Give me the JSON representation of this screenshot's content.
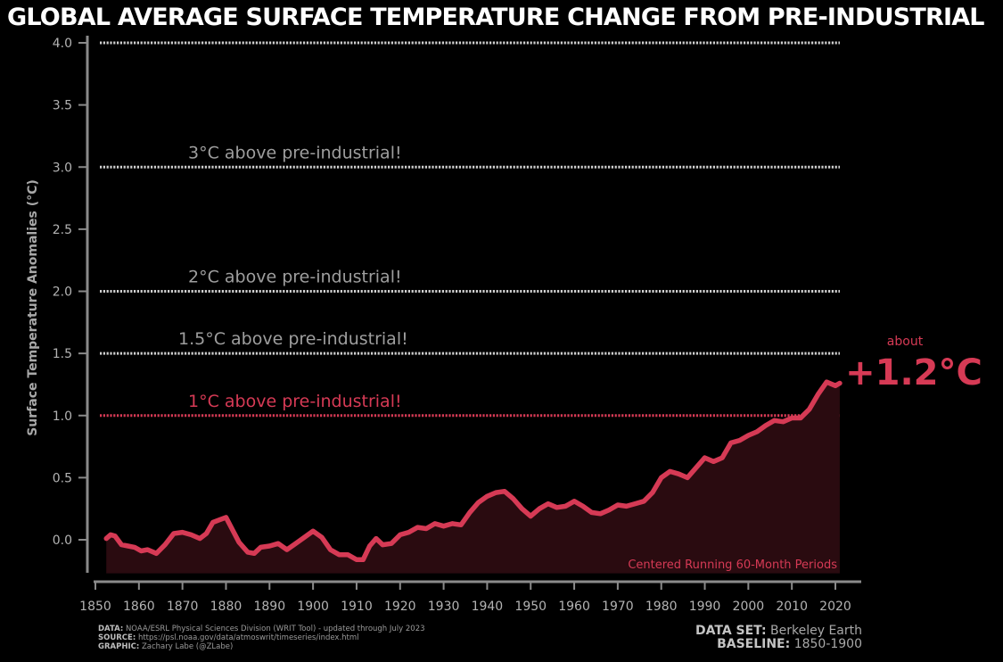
{
  "title": "GLOBAL AVERAGE SURFACE TEMPERATURE CHANGE FROM PRE-INDUSTRIAL",
  "chart_data": {
    "type": "area",
    "xlabel": "",
    "ylabel": "Surface Temperature Anomalies (°C)",
    "xlim": [
      1850,
      2025
    ],
    "ylim": [
      -0.25,
      4.0
    ],
    "x_ticks": [
      1850,
      1860,
      1870,
      1880,
      1890,
      1900,
      1910,
      1920,
      1930,
      1940,
      1950,
      1960,
      1970,
      1980,
      1990,
      2000,
      2010,
      2020
    ],
    "y_ticks": [
      0.0,
      0.5,
      1.0,
      1.5,
      2.0,
      2.5,
      3.0,
      3.5,
      4.0
    ],
    "grid": false,
    "series": [
      {
        "x": [
          1852.5,
          1853.5,
          1854.5,
          1856,
          1857.5,
          1859,
          1860.5,
          1862,
          1864,
          1866,
          1868,
          1870,
          1872,
          1874,
          1875.5,
          1877,
          1878.5,
          1880,
          1881.5,
          1883,
          1885,
          1886.5,
          1888,
          1890,
          1892,
          1894,
          1896,
          1898,
          1900,
          1902,
          1904,
          1906,
          1908,
          1910,
          1911.5,
          1913,
          1914.5,
          1916,
          1918,
          1920,
          1922,
          1924,
          1926,
          1928,
          1930,
          1932,
          1934,
          1936,
          1938,
          1940,
          1942,
          1944,
          1946,
          1948,
          1950,
          1952,
          1954,
          1956,
          1958,
          1960,
          1962,
          1964,
          1966,
          1968,
          1970,
          1972,
          1974,
          1976,
          1978,
          1980,
          1982,
          1984,
          1986,
          1988,
          1990,
          1992,
          1994,
          1996,
          1998,
          2000,
          2002,
          2004,
          2006,
          2008,
          2010,
          2012,
          2014,
          2016,
          2018,
          2020,
          2021
        ],
        "values": [
          0.01,
          0.04,
          0.03,
          -0.04,
          -0.05,
          -0.06,
          -0.09,
          -0.08,
          -0.11,
          -0.04,
          0.05,
          0.06,
          0.04,
          0.01,
          0.05,
          0.14,
          0.16,
          0.18,
          0.08,
          -0.02,
          -0.1,
          -0.11,
          -0.06,
          -0.05,
          -0.03,
          -0.08,
          -0.03,
          0.02,
          0.07,
          0.02,
          -0.08,
          -0.12,
          -0.12,
          -0.16,
          -0.16,
          -0.05,
          0.01,
          -0.04,
          -0.03,
          0.04,
          0.06,
          0.1,
          0.09,
          0.13,
          0.11,
          0.13,
          0.12,
          0.22,
          0.3,
          0.35,
          0.38,
          0.39,
          0.33,
          0.25,
          0.19,
          0.25,
          0.29,
          0.26,
          0.27,
          0.31,
          0.27,
          0.22,
          0.21,
          0.24,
          0.28,
          0.27,
          0.29,
          0.31,
          0.38,
          0.5,
          0.55,
          0.53,
          0.5,
          0.58,
          0.66,
          0.63,
          0.66,
          0.78,
          0.8,
          0.84,
          0.87,
          0.92,
          0.96,
          0.95,
          0.98,
          0.98,
          1.05,
          1.17,
          1.27,
          1.24,
          1.26
        ]
      }
    ],
    "reference_lines": [
      {
        "y": 4.0,
        "label": ""
      },
      {
        "y": 3.0,
        "label": "3°C above pre-industrial!"
      },
      {
        "y": 2.0,
        "label": "2°C above pre-industrial!"
      },
      {
        "y": 1.5,
        "label": "1.5°C above pre-industrial!"
      },
      {
        "y": 1.0,
        "label": "1°C above pre-industrial!"
      }
    ],
    "annotations": {
      "about": "about",
      "value": "+1.2°C",
      "inset": "Centered Running 60-Month Periods"
    }
  },
  "colors": {
    "line": "#d63a55",
    "fill": "#2a0b10",
    "highlight": "#d63a55",
    "refline": "#cfcfcf",
    "reftext": "#9e9e9e",
    "axis": "#8a8a8a"
  },
  "footer": {
    "data_label": "DATA:",
    "data_text": "NOAA/ESRL Physical Sciences Division (WRIT Tool) - updated through July 2023",
    "source_label": "SOURCE:",
    "source_text": "https://psl.noaa.gov/data/atmoswrit/timeseries/index.html",
    "graphic_label": "GRAPHIC:",
    "graphic_text": "Zachary Labe (@ZLabe)",
    "dataset_label": "DATA SET:",
    "dataset_text": "Berkeley Earth",
    "baseline_label": "BASELINE:",
    "baseline_text": "1850-1900"
  }
}
